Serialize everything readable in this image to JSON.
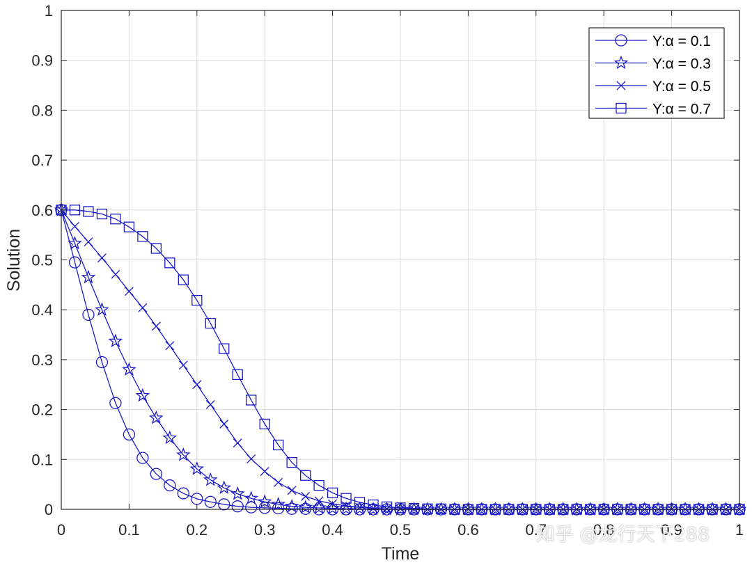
{
  "chart_data": {
    "type": "line",
    "xlabel": "Time",
    "ylabel": "Solution",
    "xlim": [
      0,
      1
    ],
    "ylim": [
      0,
      1
    ],
    "xticks": [
      "0",
      "0.1",
      "0.2",
      "0.3",
      "0.4",
      "0.5",
      "0.6",
      "0.7",
      "0.8",
      "0.9",
      "1"
    ],
    "yticks": [
      "0",
      "0.1",
      "0.2",
      "0.3",
      "0.4",
      "0.5",
      "0.6",
      "0.7",
      "0.8",
      "0.9",
      "1"
    ],
    "grid": true,
    "legend_position": "top-right",
    "color": "#1a1ac8",
    "x": [
      0.0,
      0.02,
      0.04,
      0.06,
      0.08,
      0.1,
      0.12,
      0.14,
      0.16,
      0.18,
      0.2,
      0.22,
      0.24,
      0.26,
      0.28,
      0.3,
      0.32,
      0.34,
      0.36,
      0.38,
      0.4,
      0.42,
      0.44,
      0.46,
      0.48,
      0.5,
      0.52,
      0.54,
      0.56,
      0.58,
      0.6,
      0.62,
      0.64,
      0.66,
      0.68,
      0.7,
      0.72,
      0.74,
      0.76,
      0.78,
      0.8,
      0.82,
      0.84,
      0.86,
      0.88,
      0.9,
      0.92,
      0.94,
      0.96,
      0.98,
      1.0
    ],
    "series": [
      {
        "name": "Y:α = 0.1",
        "marker": "circle",
        "values": [
          0.6,
          0.495,
          0.39,
          0.295,
          0.213,
          0.15,
          0.103,
          0.071,
          0.048,
          0.032,
          0.021,
          0.015,
          0.01,
          0.006,
          0.004,
          0.003,
          0.002,
          0.001,
          0.001,
          0,
          0,
          0,
          0,
          0,
          0,
          0,
          0,
          0,
          0,
          0,
          0,
          0,
          0,
          0,
          0,
          0,
          0,
          0,
          0,
          0,
          0,
          0,
          0,
          0,
          0,
          0,
          0,
          0,
          0,
          0,
          0
        ]
      },
      {
        "name": "Y:α = 0.3",
        "marker": "star",
        "values": [
          0.6,
          0.533,
          0.465,
          0.4,
          0.337,
          0.28,
          0.228,
          0.183,
          0.143,
          0.109,
          0.081,
          0.059,
          0.043,
          0.031,
          0.022,
          0.015,
          0.01,
          0.006,
          0.004,
          0.003,
          0.002,
          0.001,
          0.001,
          0,
          0,
          0,
          0,
          0,
          0,
          0,
          0,
          0,
          0,
          0,
          0,
          0,
          0,
          0,
          0,
          0,
          0,
          0,
          0,
          0,
          0,
          0,
          0,
          0,
          0,
          0,
          0
        ]
      },
      {
        "name": "Y:α = 0.5",
        "marker": "x",
        "values": [
          0.6,
          0.567,
          0.536,
          0.504,
          0.471,
          0.437,
          0.404,
          0.367,
          0.328,
          0.289,
          0.25,
          0.21,
          0.171,
          0.133,
          0.101,
          0.076,
          0.054,
          0.038,
          0.026,
          0.017,
          0.011,
          0.007,
          0.004,
          0.002,
          0.001,
          0.001,
          0,
          0,
          0,
          0,
          0,
          0,
          0,
          0,
          0,
          0,
          0,
          0,
          0,
          0,
          0,
          0,
          0,
          0,
          0,
          0,
          0,
          0,
          0,
          0,
          0
        ]
      },
      {
        "name": "Y:α = 0.7",
        "marker": "square",
        "values": [
          0.6,
          0.6,
          0.597,
          0.592,
          0.582,
          0.566,
          0.547,
          0.523,
          0.494,
          0.46,
          0.419,
          0.373,
          0.322,
          0.27,
          0.219,
          0.171,
          0.129,
          0.094,
          0.068,
          0.048,
          0.033,
          0.022,
          0.014,
          0.009,
          0.005,
          0.003,
          0.002,
          0.001,
          0.001,
          0,
          0,
          0,
          0,
          0,
          0,
          0,
          0,
          0,
          0,
          0,
          0,
          0,
          0,
          0,
          0,
          0,
          0,
          0,
          0,
          0,
          0
        ]
      }
    ]
  },
  "watermark": "知乎 @龙行天下288"
}
